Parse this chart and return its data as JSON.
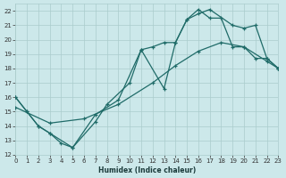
{
  "xlabel": "Humidex (Indice chaleur)",
  "bg_color": "#cce8ea",
  "grid_color": "#aacccc",
  "line_color": "#1f6b68",
  "xlim": [
    0,
    23
  ],
  "ylim": [
    12,
    22.5
  ],
  "xticks": [
    0,
    1,
    2,
    3,
    4,
    5,
    6,
    7,
    8,
    9,
    10,
    11,
    12,
    13,
    14,
    15,
    16,
    17,
    18,
    19,
    20,
    21,
    22,
    23
  ],
  "yticks": [
    12,
    13,
    14,
    15,
    16,
    17,
    18,
    19,
    20,
    21,
    22
  ],
  "line1_x": [
    0,
    1,
    2,
    3,
    5,
    7,
    9,
    11,
    13,
    14,
    15,
    16,
    17,
    19,
    20,
    21,
    22,
    23
  ],
  "line1_y": [
    16,
    15,
    14,
    13.5,
    12.5,
    14.8,
    15.8,
    19.3,
    16.6,
    19.8,
    21.4,
    21.8,
    22.1,
    21.0,
    20.8,
    21.0,
    18.7,
    18.0
  ],
  "line2_x": [
    0,
    1,
    2,
    3,
    4,
    5,
    7,
    8,
    10,
    11,
    12,
    13,
    14,
    15,
    16,
    17,
    18,
    19,
    20,
    21,
    22,
    23
  ],
  "line2_y": [
    16,
    15,
    14,
    13.5,
    12.8,
    12.5,
    14.3,
    15.5,
    17.0,
    19.3,
    19.5,
    19.8,
    19.8,
    21.4,
    22.1,
    21.5,
    21.5,
    19.5,
    19.5,
    18.7,
    18.7,
    18.0
  ],
  "line3_x": [
    0,
    3,
    6,
    9,
    12,
    14,
    16,
    18,
    20,
    22,
    23
  ],
  "line3_y": [
    15.3,
    14.2,
    14.5,
    15.5,
    17.0,
    18.2,
    19.2,
    19.8,
    19.5,
    18.5,
    18.0
  ]
}
